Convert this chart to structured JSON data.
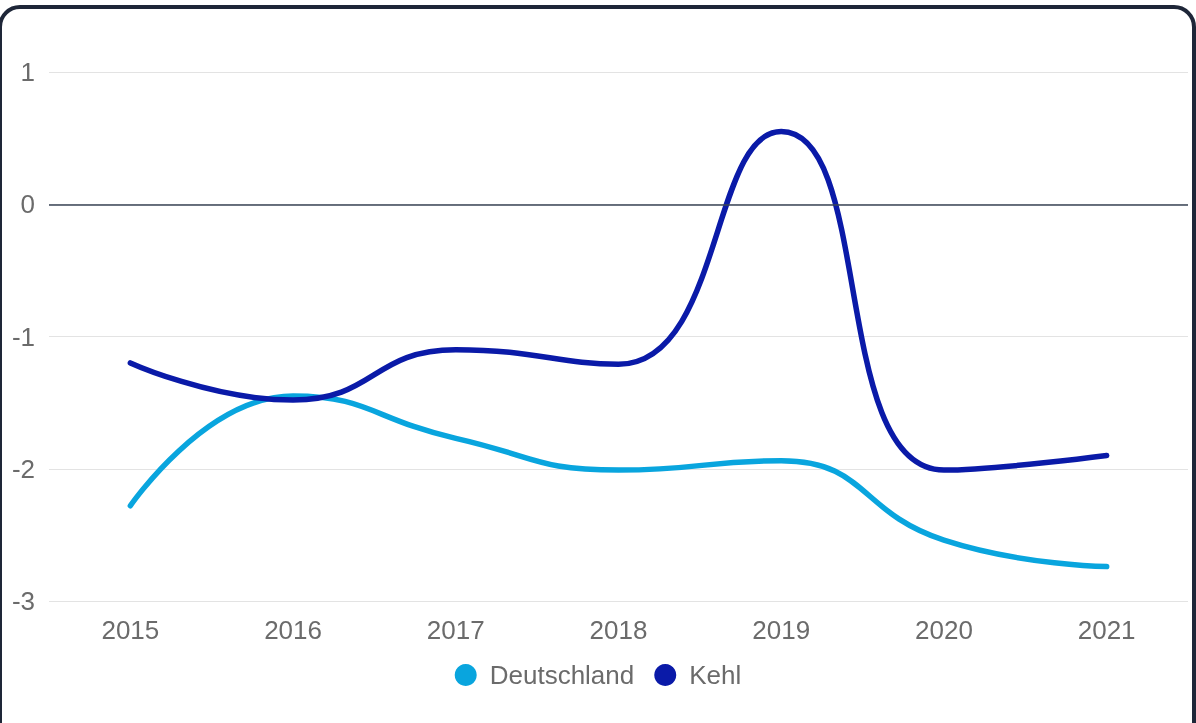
{
  "chart_data": {
    "type": "line",
    "x": [
      2015,
      2016,
      2017,
      2018,
      2019,
      2020,
      2021
    ],
    "xlim": [
      2014.5,
      2021.5
    ],
    "xticks": [
      2015,
      2016,
      2017,
      2018,
      2019,
      2020,
      2021
    ],
    "ylim": [
      -3,
      1
    ],
    "yticks": [
      -3,
      -2,
      -1,
      0,
      1
    ],
    "series": [
      {
        "name": "Deutschland",
        "color": "#09a5de",
        "values": [
          -2.28,
          -1.45,
          -1.77,
          -2.01,
          -1.94,
          -2.54,
          -2.74
        ]
      },
      {
        "name": "Kehl",
        "color": "#0a1aa8",
        "values": [
          -1.2,
          -1.48,
          -1.1,
          -1.21,
          0.55,
          -2.01,
          -1.9
        ]
      }
    ],
    "grid": "y",
    "legend": "bottom",
    "marker": "none",
    "line_style": "solid",
    "ref_lines": [
      {
        "axis": "y",
        "value": 0,
        "color": "#3a4456"
      }
    ]
  }
}
